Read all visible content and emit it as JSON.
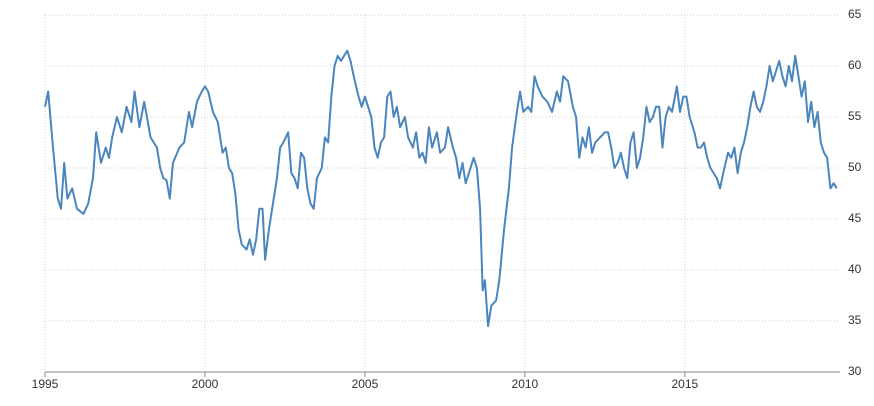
{
  "chart_data": {
    "type": "line",
    "x": [
      1995.0,
      1995.1,
      1995.25,
      1995.4,
      1995.5,
      1995.6,
      1995.7,
      1995.85,
      1996.0,
      1996.2,
      1996.35,
      1996.5,
      1996.6,
      1996.75,
      1996.9,
      1997.0,
      1997.1,
      1997.25,
      1997.4,
      1997.55,
      1997.7,
      1997.8,
      1997.95,
      1998.1,
      1998.3,
      1998.5,
      1998.6,
      1998.7,
      1998.8,
      1998.9,
      1999.0,
      1999.2,
      1999.35,
      1999.5,
      1999.6,
      1999.75,
      1999.9,
      2000.0,
      2000.1,
      2000.25,
      2000.4,
      2000.55,
      2000.65,
      2000.75,
      2000.85,
      2000.95,
      2001.05,
      2001.15,
      2001.3,
      2001.4,
      2001.5,
      2001.6,
      2001.7,
      2001.8,
      2001.88,
      2002.0,
      2002.1,
      2002.25,
      2002.35,
      2002.45,
      2002.6,
      2002.7,
      2002.8,
      2002.9,
      2003.0,
      2003.1,
      2003.2,
      2003.3,
      2003.4,
      2003.5,
      2003.65,
      2003.75,
      2003.85,
      2003.95,
      2004.05,
      2004.15,
      2004.25,
      2004.35,
      2004.45,
      2004.55,
      2004.65,
      2004.8,
      2004.9,
      2005.0,
      2005.1,
      2005.2,
      2005.3,
      2005.4,
      2005.5,
      2005.6,
      2005.7,
      2005.8,
      2005.9,
      2006.0,
      2006.1,
      2006.25,
      2006.35,
      2006.5,
      2006.6,
      2006.7,
      2006.8,
      2006.9,
      2007.0,
      2007.1,
      2007.25,
      2007.35,
      2007.5,
      2007.6,
      2007.75,
      2007.85,
      2007.95,
      2008.05,
      2008.15,
      2008.25,
      2008.4,
      2008.5,
      2008.6,
      2008.68,
      2008.75,
      2008.85,
      2008.95,
      2009.1,
      2009.2,
      2009.35,
      2009.5,
      2009.6,
      2009.75,
      2009.85,
      2009.95,
      2010.1,
      2010.2,
      2010.3,
      2010.4,
      2010.55,
      2010.7,
      2010.85,
      2011.0,
      2011.1,
      2011.2,
      2011.35,
      2011.5,
      2011.6,
      2011.7,
      2011.8,
      2011.9,
      2012.0,
      2012.1,
      2012.2,
      2012.35,
      2012.5,
      2012.6,
      2012.7,
      2012.8,
      2012.9,
      2013.0,
      2013.1,
      2013.2,
      2013.3,
      2013.4,
      2013.5,
      2013.6,
      2013.7,
      2013.8,
      2013.9,
      2014.0,
      2014.1,
      2014.2,
      2014.3,
      2014.4,
      2014.5,
      2014.6,
      2014.75,
      2014.85,
      2014.95,
      2015.05,
      2015.15,
      2015.3,
      2015.4,
      2015.5,
      2015.6,
      2015.7,
      2015.8,
      2015.9,
      2016.0,
      2016.1,
      2016.2,
      2016.35,
      2016.45,
      2016.55,
      2016.65,
      2016.75,
      2016.85,
      2016.95,
      2017.05,
      2017.15,
      2017.25,
      2017.35,
      2017.45,
      2017.55,
      2017.65,
      2017.75,
      2017.85,
      2017.95,
      2018.05,
      2018.15,
      2018.25,
      2018.35,
      2018.45,
      2018.55,
      2018.65,
      2018.75,
      2018.85,
      2018.95,
      2019.05,
      2019.15,
      2019.25,
      2019.35,
      2019.45,
      2019.55,
      2019.65,
      2019.75
    ],
    "series": [
      {
        "color": "#4a86bd",
        "values": [
          56,
          57.5,
          52,
          47,
          46,
          50.5,
          47,
          48,
          46,
          45.5,
          46.5,
          49,
          53.5,
          50.5,
          52,
          51,
          53,
          55,
          53.5,
          56,
          54.5,
          57.5,
          54,
          56.5,
          53,
          52,
          50,
          49,
          48.8,
          47,
          50.5,
          52,
          52.5,
          55.5,
          54,
          56.5,
          57.5,
          58,
          57.5,
          55.5,
          54.5,
          51.5,
          52,
          50,
          49.5,
          47.5,
          44,
          42.5,
          42,
          43,
          41.5,
          43,
          46,
          46,
          41,
          44,
          46,
          49,
          52,
          52.5,
          53.5,
          49.5,
          49,
          48,
          51.5,
          51,
          48,
          46.5,
          46,
          49,
          50,
          53,
          52.5,
          57,
          60,
          61,
          60.5,
          61,
          61.5,
          60.5,
          59,
          57,
          56,
          57,
          56,
          55,
          52,
          51,
          52.5,
          53,
          57,
          57.5,
          55,
          56,
          54,
          55,
          53,
          52,
          53.5,
          51,
          51.5,
          50.5,
          54,
          52,
          53.5,
          51.5,
          52,
          54,
          52,
          51,
          49,
          50.5,
          48.5,
          49.5,
          51,
          50,
          46,
          38,
          39,
          34.5,
          36.5,
          37,
          39,
          44,
          48,
          52,
          55.5,
          57.5,
          55.5,
          56,
          55.5,
          59,
          58,
          57,
          56.5,
          55.5,
          57.5,
          56.5,
          59,
          58.5,
          56,
          55,
          51,
          53,
          52,
          54,
          51.5,
          52.5,
          53,
          53.5,
          53.5,
          52,
          50,
          50.5,
          51.5,
          50,
          49,
          52.5,
          53.5,
          50,
          51,
          53,
          56,
          54.5,
          55,
          56,
          56,
          52,
          55,
          56,
          55.5,
          58,
          55.5,
          57,
          57,
          55,
          53.5,
          52,
          52,
          52.5,
          51,
          50,
          49.5,
          49,
          48,
          49.5,
          51.5,
          51,
          52,
          49.5,
          51.5,
          52.5,
          54,
          56,
          57.5,
          56,
          55.5,
          56.5,
          58,
          60,
          58.5,
          59.5,
          60.5,
          59,
          58,
          60,
          58.5,
          61,
          59,
          57,
          58.5,
          54.5,
          56.5,
          54,
          55.5,
          52.5,
          51.5,
          51,
          48,
          48.5,
          48
        ]
      }
    ],
    "xlim": [
      1995,
      2019.85
    ],
    "xticks": [
      1995,
      2000,
      2005,
      2010,
      2015
    ],
    "ylim": [
      30,
      65
    ],
    "yticks": [
      30,
      35,
      40,
      45,
      50,
      55,
      60,
      65
    ],
    "grid": true
  }
}
